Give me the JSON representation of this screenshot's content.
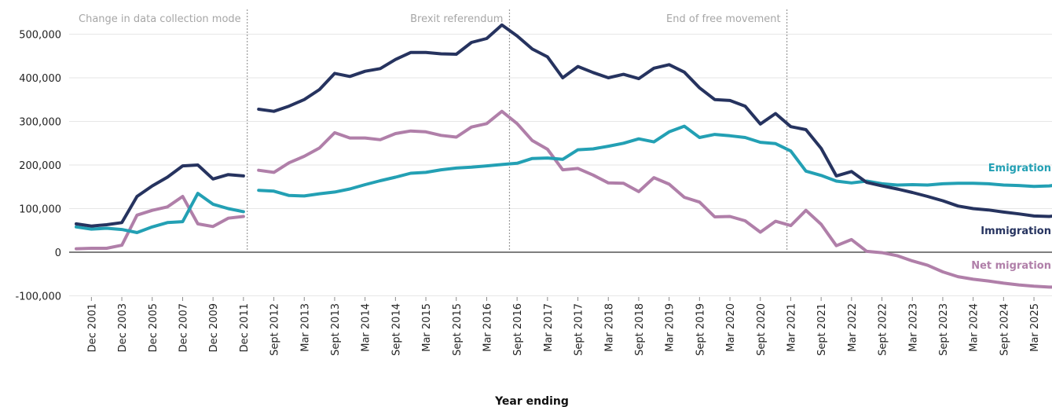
{
  "chart_data": {
    "type": "line",
    "xlabel": "Year ending",
    "ylabel": "",
    "ylim": [
      -120000,
      525000
    ],
    "grid": true,
    "y_ticks": [
      {
        "value": 500000,
        "label": "500,000"
      },
      {
        "value": 400000,
        "label": "400,000"
      },
      {
        "value": 300000,
        "label": "300,000"
      },
      {
        "value": 200000,
        "label": "200,000"
      },
      {
        "value": 100000,
        "label": "100,000"
      },
      {
        "value": 0,
        "label": "0"
      },
      {
        "value": -100000,
        "label": "-100,000"
      }
    ],
    "x_ticks": [
      {
        "index": 1,
        "label": "Dec 2001"
      },
      {
        "index": 3,
        "label": "Dec 2003"
      },
      {
        "index": 5,
        "label": "Dec 2005"
      },
      {
        "index": 7,
        "label": "Dec 2007"
      },
      {
        "index": 9,
        "label": "Dec 2009"
      },
      {
        "index": 11,
        "label": "Dec 2011"
      },
      {
        "index": 13,
        "label": "Sept 2012"
      },
      {
        "index": 15,
        "label": "Mar 2013"
      },
      {
        "index": 17,
        "label": "Sept 2013"
      },
      {
        "index": 19,
        "label": "Mar 2014"
      },
      {
        "index": 21,
        "label": "Sept 2014"
      },
      {
        "index": 23,
        "label": "Mar 2015"
      },
      {
        "index": 25,
        "label": "Sept 2015"
      },
      {
        "index": 27,
        "label": "Mar 2016"
      },
      {
        "index": 29,
        "label": "Sept 2016"
      },
      {
        "index": 31,
        "label": "Mar 2017"
      },
      {
        "index": 33,
        "label": "Sept 2017"
      },
      {
        "index": 35,
        "label": "Mar 2018"
      },
      {
        "index": 37,
        "label": "Sept 2018"
      },
      {
        "index": 39,
        "label": "Mar 2019"
      },
      {
        "index": 41,
        "label": "Sept 2019"
      },
      {
        "index": 43,
        "label": "Mar 2020"
      },
      {
        "index": 45,
        "label": "Sept 2020"
      },
      {
        "index": 47,
        "label": "Mar 2021"
      },
      {
        "index": 49,
        "label": "Sept 2021"
      },
      {
        "index": 51,
        "label": "Mar 2022"
      },
      {
        "index": 53,
        "label": "Sept 2022"
      },
      {
        "index": 55,
        "label": "Mar 2023"
      },
      {
        "index": 57,
        "label": "Sept 2023"
      },
      {
        "index": 59,
        "label": "Mar 2024"
      },
      {
        "index": 61,
        "label": "Sept 2024"
      },
      {
        "index": 63,
        "label": "Mar 2025"
      }
    ],
    "annotations": [
      {
        "label": "Change in data collection mode",
        "index": 11.25
      },
      {
        "label": "Brexit referendum",
        "index": 28.5
      },
      {
        "label": "End of free movement",
        "index": 46.75
      }
    ],
    "series": [
      {
        "name": "Immigration",
        "color": "#26335f",
        "segments": [
          {
            "start": 0,
            "values": [
              65000,
              60000,
              63000,
              68000,
              128000,
              152000,
              172000,
              198000,
              200000,
              168000,
              178000,
              175000
            ]
          },
          {
            "start": 12,
            "values": [
              328000,
              323000,
              335000,
              350000,
              373000,
              410000,
              403000,
              415000,
              421000,
              442000,
              458000,
              458000,
              455000,
              454000,
              481000,
              490000,
              521000,
              496000,
              466000,
              448000,
              400000,
              426000,
              412000,
              400000,
              408000,
              398000,
              422000,
              430000,
              413000,
              377000,
              350000,
              348000,
              335000,
              294000,
              318000,
              288000,
              281000,
              238000,
              175000,
              185000,
              160000,
              152000,
              145000,
              137000,
              128000,
              118000,
              106000,
              100000,
              97000,
              92000,
              88000,
              83000,
              82000,
              86000
            ]
          }
        ]
      },
      {
        "name": "Emigration",
        "color": "#23a0b4",
        "segments": [
          {
            "start": 0,
            "values": [
              58000,
              53000,
              55000,
              52000,
              45000,
              58000,
              68000,
              70000,
              135000,
              110000,
              100000,
              93000
            ]
          },
          {
            "start": 12,
            "values": [
              142000,
              140000,
              130000,
              129000,
              134000,
              138000,
              145000,
              155000,
              164000,
              172000,
              181000,
              183000,
              189000,
              193000,
              195000,
              198000,
              201000,
              204000,
              215000,
              216000,
              213000,
              235000,
              237000,
              243000,
              250000,
              260000,
              253000,
              276000,
              289000,
              263000,
              270000,
              267000,
              263000,
              252000,
              249000,
              232000,
              186000,
              176000,
              163000,
              159000,
              163000,
              157000,
              154000,
              155000,
              154000,
              157000,
              158000,
              158000,
              157000,
              154000,
              153000,
              151000,
              152000,
              156000
            ]
          }
        ]
      },
      {
        "name": "Net migration",
        "color": "#b07fa9",
        "segments": [
          {
            "start": 0,
            "values": [
              8000,
              9000,
              9000,
              16000,
              85000,
              96000,
              104000,
              128000,
              65000,
              59000,
              78000,
              82000
            ]
          },
          {
            "start": 12,
            "values": [
              188000,
              183000,
              205000,
              220000,
              239000,
              274000,
              262000,
              262000,
              258000,
              272000,
              278000,
              276000,
              268000,
              264000,
              287000,
              295000,
              323000,
              295000,
              256000,
              236000,
              189000,
              192000,
              177000,
              159000,
              158000,
              139000,
              171000,
              156000,
              126000,
              115000,
              81000,
              82000,
              72000,
              46000,
              71000,
              61000,
              96000,
              64000,
              15000,
              29000,
              2000,
              -1000,
              -8000,
              -20000,
              -30000,
              -45000,
              -56000,
              -62000,
              -66000,
              -71000,
              -75000,
              -78000,
              -80000,
              -80000
            ]
          }
        ]
      }
    ]
  }
}
